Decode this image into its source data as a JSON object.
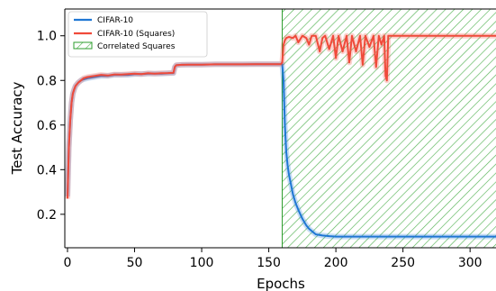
{
  "chart_data": {
    "type": "line",
    "xlabel": "Epochs",
    "ylabel": "Test Accuracy",
    "xlim": [
      -2,
      320
    ],
    "ylim": [
      0.05,
      1.12
    ],
    "xticks": [
      0,
      50,
      100,
      150,
      200,
      250,
      300
    ],
    "yticks": [
      0.2,
      0.4,
      0.6,
      0.8,
      1.0
    ],
    "xtick_labels": [
      "0",
      "50",
      "100",
      "150",
      "200",
      "250",
      "300"
    ],
    "ytick_labels": [
      "0.2",
      "0.4",
      "0.6",
      "0.8",
      "1.0"
    ],
    "legend_position": "top-left",
    "grid": false,
    "shaded_region": {
      "name": "Correlated Squares",
      "x_start": 160,
      "x_end": 320,
      "hatch": "diagonal",
      "color": "#2e9e2e"
    },
    "series": [
      {
        "name": "CIFAR-10",
        "color": "#1f77d4",
        "x": [
          0,
          1,
          2,
          3,
          4,
          5,
          6,
          8,
          10,
          12,
          15,
          20,
          25,
          30,
          35,
          40,
          45,
          50,
          55,
          60,
          65,
          70,
          75,
          79,
          80,
          81,
          85,
          90,
          100,
          110,
          120,
          130,
          140,
          150,
          155,
          159,
          160,
          161,
          162,
          163,
          164,
          165,
          166,
          167,
          168,
          170,
          172,
          175,
          178,
          180,
          183,
          185,
          190,
          195,
          200,
          210,
          220,
          230,
          240,
          250,
          260,
          270,
          280,
          290,
          300,
          310,
          320
        ],
        "y": [
          0.28,
          0.5,
          0.62,
          0.7,
          0.74,
          0.76,
          0.775,
          0.79,
          0.8,
          0.805,
          0.81,
          0.815,
          0.82,
          0.82,
          0.825,
          0.825,
          0.825,
          0.828,
          0.828,
          0.83,
          0.83,
          0.83,
          0.832,
          0.833,
          0.86,
          0.868,
          0.87,
          0.871,
          0.871,
          0.872,
          0.872,
          0.872,
          0.873,
          0.873,
          0.873,
          0.873,
          0.873,
          0.8,
          0.6,
          0.48,
          0.42,
          0.38,
          0.35,
          0.32,
          0.29,
          0.25,
          0.22,
          0.18,
          0.15,
          0.135,
          0.12,
          0.11,
          0.105,
          0.102,
          0.1,
          0.1,
          0.1,
          0.1,
          0.1,
          0.1,
          0.1,
          0.1,
          0.1,
          0.1,
          0.1,
          0.1,
          0.1
        ]
      },
      {
        "name": "CIFAR-10 (Squares)",
        "color": "#f04a3a",
        "x": [
          0,
          1,
          2,
          3,
          4,
          5,
          6,
          8,
          10,
          12,
          15,
          20,
          25,
          30,
          35,
          40,
          45,
          50,
          55,
          60,
          65,
          70,
          75,
          79,
          80,
          81,
          85,
          90,
          100,
          110,
          120,
          130,
          140,
          150,
          155,
          159,
          160,
          161,
          162,
          163,
          165,
          168,
          170,
          172,
          175,
          178,
          180,
          182,
          185,
          188,
          190,
          192,
          195,
          198,
          200,
          202,
          205,
          208,
          210,
          212,
          215,
          218,
          220,
          222,
          225,
          228,
          230,
          232,
          234,
          236,
          237,
          238,
          239,
          240,
          250,
          260,
          270,
          280,
          290,
          300,
          310,
          320
        ],
        "y": [
          0.27,
          0.5,
          0.62,
          0.7,
          0.74,
          0.76,
          0.775,
          0.79,
          0.8,
          0.81,
          0.815,
          0.82,
          0.825,
          0.822,
          0.827,
          0.826,
          0.828,
          0.83,
          0.828,
          0.832,
          0.83,
          0.832,
          0.833,
          0.834,
          0.86,
          0.868,
          0.87,
          0.871,
          0.871,
          0.872,
          0.872,
          0.872,
          0.873,
          0.873,
          0.873,
          0.873,
          0.88,
          0.96,
          0.98,
          0.99,
          0.995,
          0.99,
          1.0,
          0.97,
          1.0,
          0.99,
          0.96,
          1.0,
          1.0,
          0.93,
          0.99,
          1.0,
          0.94,
          1.0,
          0.9,
          1.0,
          0.93,
          1.0,
          0.88,
          1.0,
          0.93,
          1.0,
          0.87,
          1.0,
          0.95,
          1.0,
          0.86,
          1.0,
          0.96,
          1.0,
          0.82,
          0.8,
          1.0,
          1.0,
          1.0,
          1.0,
          1.0,
          1.0,
          1.0,
          1.0,
          1.0,
          1.0
        ]
      }
    ]
  }
}
